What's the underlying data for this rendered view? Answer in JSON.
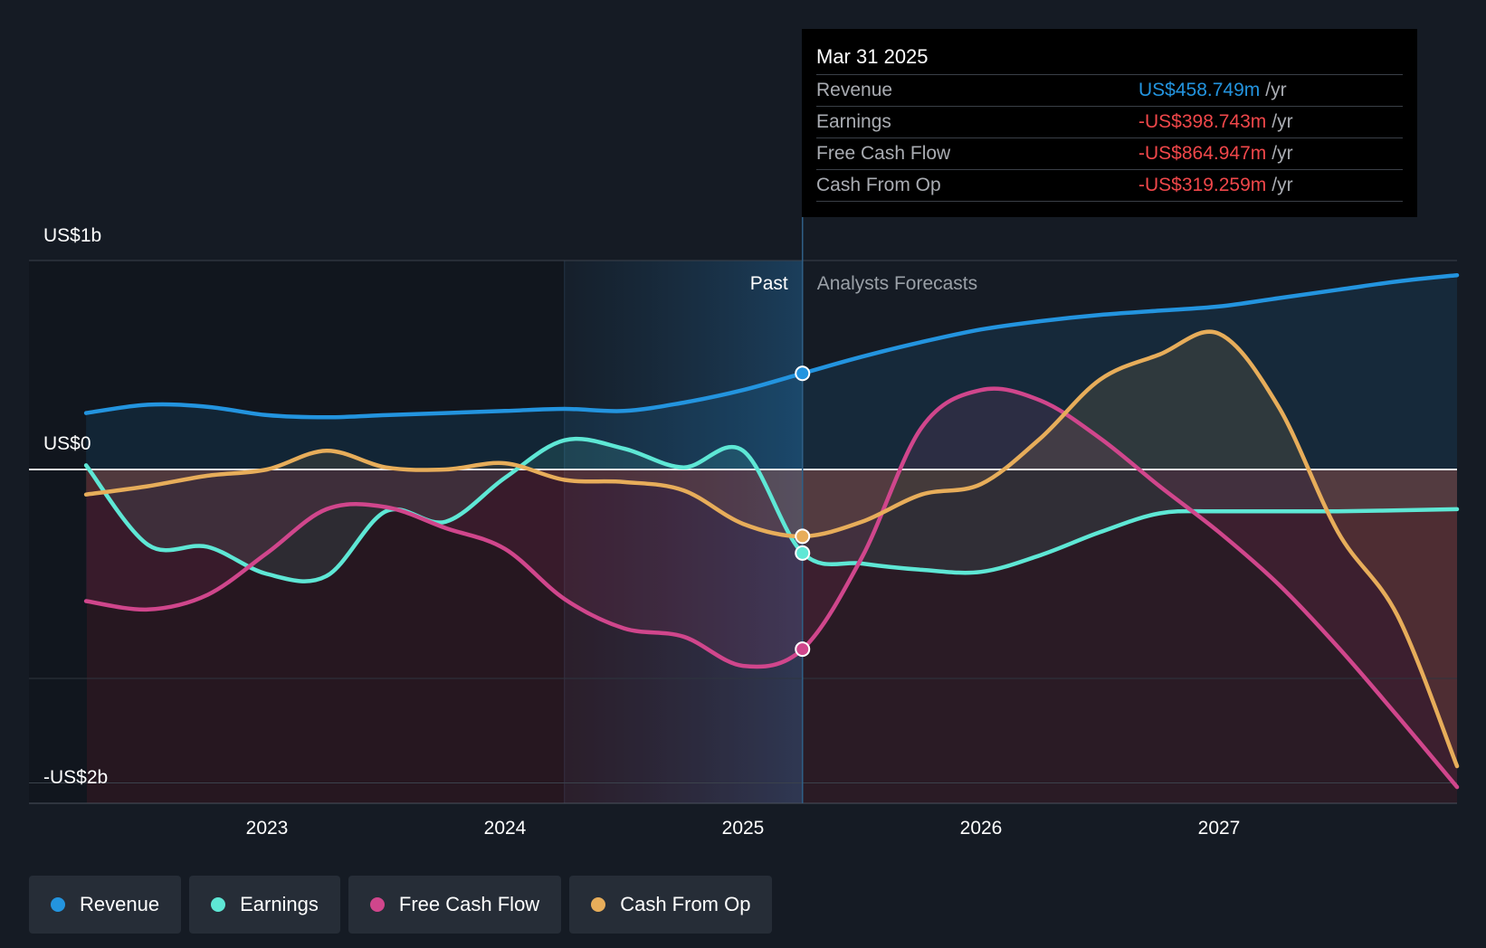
{
  "colors": {
    "background": "#151b24",
    "revenue": "#2394df",
    "earnings": "#5ee7d5",
    "free_cash_flow": "#d0468c",
    "cash_from_op": "#e7ad5a",
    "negative": "#ff4d4f"
  },
  "tooltip": {
    "date": "Mar 31 2025",
    "rows": [
      {
        "label": "Revenue",
        "value": "US$458.749m",
        "unit": "/yr",
        "color": "#2394df"
      },
      {
        "label": "Earnings",
        "value": "-US$398.743m",
        "unit": "/yr",
        "color": "#f0474a"
      },
      {
        "label": "Free Cash Flow",
        "value": "-US$864.947m",
        "unit": "/yr",
        "color": "#f0474a"
      },
      {
        "label": "Cash From Op",
        "value": "-US$319.259m",
        "unit": "/yr",
        "color": "#f0474a"
      }
    ]
  },
  "chart_data": {
    "type": "line",
    "y_unit": "US$ billions",
    "ylim": [
      -1.6,
      1.0
    ],
    "y_labels": [
      {
        "text": "US$1b",
        "value": 1.0
      },
      {
        "text": "US$0",
        "value": 0
      },
      {
        "text": "-US$2b",
        "value": -1.5
      }
    ],
    "x_ticks": [
      "2023",
      "2024",
      "2025",
      "2026",
      "2027"
    ],
    "xlim": [
      2022.0,
      2028.0
    ],
    "past_label": "Past",
    "forecast_label": "Analysts Forecasts",
    "past_start": 2024.25,
    "divider": 2025.25,
    "series": [
      {
        "name": "Revenue",
        "color": "#2394df",
        "points": [
          [
            2022.24,
            0.27
          ],
          [
            2022.5,
            0.31
          ],
          [
            2022.75,
            0.3
          ],
          [
            2023.0,
            0.26
          ],
          [
            2023.25,
            0.25
          ],
          [
            2023.5,
            0.26
          ],
          [
            2023.75,
            0.27
          ],
          [
            2024.0,
            0.28
          ],
          [
            2024.25,
            0.29
          ],
          [
            2024.5,
            0.28
          ],
          [
            2024.75,
            0.32
          ],
          [
            2025.0,
            0.38
          ],
          [
            2025.25,
            0.46
          ],
          [
            2025.5,
            0.54
          ],
          [
            2025.75,
            0.61
          ],
          [
            2026.0,
            0.67
          ],
          [
            2026.25,
            0.71
          ],
          [
            2026.5,
            0.74
          ],
          [
            2026.75,
            0.76
          ],
          [
            2027.0,
            0.78
          ],
          [
            2027.25,
            0.82
          ],
          [
            2027.5,
            0.86
          ],
          [
            2027.75,
            0.9
          ],
          [
            2028.0,
            0.93
          ]
        ]
      },
      {
        "name": "Earnings",
        "color": "#5ee7d5",
        "points": [
          [
            2022.24,
            0.02
          ],
          [
            2022.5,
            -0.36
          ],
          [
            2022.75,
            -0.37
          ],
          [
            2023.0,
            -0.5
          ],
          [
            2023.25,
            -0.51
          ],
          [
            2023.5,
            -0.2
          ],
          [
            2023.75,
            -0.25
          ],
          [
            2024.0,
            -0.04
          ],
          [
            2024.25,
            0.14
          ],
          [
            2024.5,
            0.1
          ],
          [
            2024.75,
            0.01
          ],
          [
            2025.0,
            0.09
          ],
          [
            2025.25,
            -0.4
          ],
          [
            2025.5,
            -0.45
          ],
          [
            2025.75,
            -0.48
          ],
          [
            2026.0,
            -0.49
          ],
          [
            2026.25,
            -0.41
          ],
          [
            2026.5,
            -0.3
          ],
          [
            2026.75,
            -0.21
          ],
          [
            2027.0,
            -0.2
          ],
          [
            2027.5,
            -0.2
          ],
          [
            2028.0,
            -0.19
          ]
        ]
      },
      {
        "name": "Free Cash Flow",
        "color": "#d0468c",
        "points": [
          [
            2022.24,
            -0.63
          ],
          [
            2022.5,
            -0.67
          ],
          [
            2022.75,
            -0.6
          ],
          [
            2023.0,
            -0.4
          ],
          [
            2023.25,
            -0.19
          ],
          [
            2023.5,
            -0.18
          ],
          [
            2023.75,
            -0.28
          ],
          [
            2024.0,
            -0.38
          ],
          [
            2024.25,
            -0.62
          ],
          [
            2024.5,
            -0.76
          ],
          [
            2024.75,
            -0.8
          ],
          [
            2025.0,
            -0.94
          ],
          [
            2025.25,
            -0.86
          ],
          [
            2025.5,
            -0.42
          ],
          [
            2025.75,
            0.2
          ],
          [
            2026.0,
            0.38
          ],
          [
            2026.25,
            0.33
          ],
          [
            2026.5,
            0.15
          ],
          [
            2026.75,
            -0.08
          ],
          [
            2027.0,
            -0.3
          ],
          [
            2027.25,
            -0.55
          ],
          [
            2027.5,
            -0.85
          ],
          [
            2027.75,
            -1.18
          ],
          [
            2028.0,
            -1.52
          ]
        ]
      },
      {
        "name": "Cash From Op",
        "color": "#e7ad5a",
        "points": [
          [
            2022.24,
            -0.12
          ],
          [
            2022.5,
            -0.08
          ],
          [
            2022.75,
            -0.03
          ],
          [
            2023.0,
            0.0
          ],
          [
            2023.25,
            0.09
          ],
          [
            2023.5,
            0.01
          ],
          [
            2023.75,
            0.0
          ],
          [
            2024.0,
            0.03
          ],
          [
            2024.25,
            -0.05
          ],
          [
            2024.5,
            -0.06
          ],
          [
            2024.75,
            -0.1
          ],
          [
            2025.0,
            -0.26
          ],
          [
            2025.25,
            -0.32
          ],
          [
            2025.5,
            -0.25
          ],
          [
            2025.75,
            -0.12
          ],
          [
            2026.0,
            -0.07
          ],
          [
            2026.25,
            0.15
          ],
          [
            2026.5,
            0.43
          ],
          [
            2026.75,
            0.55
          ],
          [
            2027.0,
            0.65
          ],
          [
            2027.25,
            0.3
          ],
          [
            2027.5,
            -0.3
          ],
          [
            2027.75,
            -0.7
          ],
          [
            2028.0,
            -1.42
          ]
        ]
      }
    ],
    "markers": [
      {
        "series": "Revenue",
        "x": 2025.25,
        "y": 0.46
      },
      {
        "series": "Earnings",
        "x": 2025.25,
        "y": -0.4
      },
      {
        "series": "Free Cash Flow",
        "x": 2025.25,
        "y": -0.86
      },
      {
        "series": "Cash From Op",
        "x": 2025.25,
        "y": -0.32
      }
    ]
  },
  "legend": [
    {
      "label": "Revenue",
      "color": "#2394df"
    },
    {
      "label": "Earnings",
      "color": "#5ee7d5"
    },
    {
      "label": "Free Cash Flow",
      "color": "#d0468c"
    },
    {
      "label": "Cash From Op",
      "color": "#e7ad5a"
    }
  ]
}
